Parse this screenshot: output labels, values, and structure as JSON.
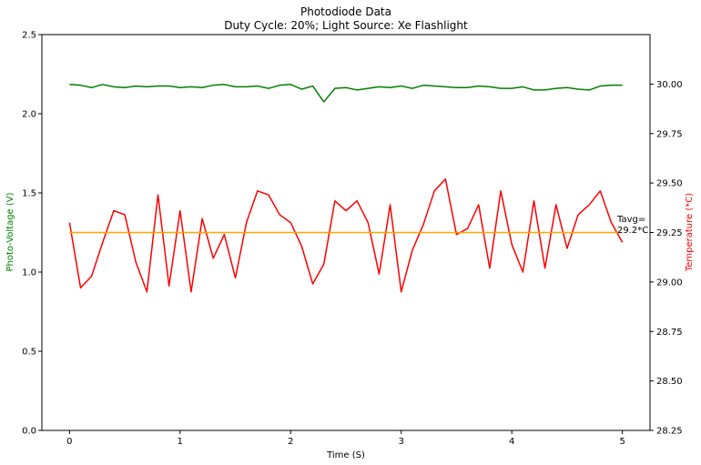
{
  "chart_data": {
    "type": "line",
    "title": "Photodiode Data",
    "subtitle": "Duty Cycle: 20%; Light Source: Xe Flashlight",
    "xlabel": "Time (S)",
    "ylabel_left": "Photo-Voltage (V)",
    "ylabel_right": "Temperature (*C)",
    "xlim": [
      -0.25,
      5.25
    ],
    "ylim_left": [
      0.0,
      2.5
    ],
    "ylim_right": [
      28.25,
      30.25
    ],
    "xticks": [
      0,
      1,
      2,
      3,
      4,
      5
    ],
    "yticks_left": [
      0.0,
      0.5,
      1.0,
      1.5,
      2.0,
      2.5
    ],
    "yticks_right": [
      28.25,
      28.5,
      28.75,
      29.0,
      29.25,
      29.5,
      29.75,
      30.0
    ],
    "grid": false,
    "x": [
      0.0,
      0.1,
      0.2,
      0.3,
      0.4,
      0.5,
      0.6,
      0.7,
      0.8,
      0.9,
      1.0,
      1.1,
      1.2,
      1.3,
      1.4,
      1.5,
      1.6,
      1.7,
      1.8,
      1.9,
      2.0,
      2.1,
      2.2,
      2.3,
      2.4,
      2.5,
      2.6,
      2.7,
      2.8,
      2.9,
      3.0,
      3.1,
      3.2,
      3.3,
      3.4,
      3.5,
      3.6,
      3.7,
      3.8,
      3.9,
      4.0,
      4.1,
      4.2,
      4.3,
      4.4,
      4.5,
      4.6,
      4.7,
      4.8,
      4.9,
      5.0
    ],
    "series": [
      {
        "name": "Photo-Voltage",
        "axis": "left",
        "color": "#008000",
        "values": [
          2.185,
          2.18,
          2.165,
          2.185,
          2.17,
          2.165,
          2.175,
          2.17,
          2.175,
          2.175,
          2.165,
          2.17,
          2.165,
          2.18,
          2.185,
          2.17,
          2.17,
          2.175,
          2.16,
          2.18,
          2.185,
          2.155,
          2.175,
          2.075,
          2.16,
          2.165,
          2.15,
          2.16,
          2.17,
          2.165,
          2.175,
          2.16,
          2.18,
          2.175,
          2.17,
          2.165,
          2.165,
          2.175,
          2.17,
          2.16,
          2.16,
          2.17,
          2.15,
          2.15,
          2.16,
          2.165,
          2.155,
          2.15,
          2.175,
          2.18,
          2.18
        ]
      },
      {
        "name": "Temperature",
        "axis": "right",
        "color": "#ff0000",
        "values": [
          29.3,
          28.97,
          29.03,
          29.2,
          29.36,
          29.34,
          29.1,
          28.95,
          29.44,
          28.98,
          29.36,
          28.95,
          29.32,
          29.12,
          29.24,
          29.02,
          29.3,
          29.46,
          29.44,
          29.34,
          29.3,
          29.18,
          28.99,
          29.09,
          29.41,
          29.36,
          29.41,
          29.3,
          29.04,
          29.39,
          28.95,
          29.16,
          29.29,
          29.46,
          29.52,
          29.24,
          29.27,
          29.39,
          29.07,
          29.46,
          29.19,
          29.05,
          29.41,
          29.07,
          29.39,
          29.17,
          29.34,
          29.39,
          29.46,
          29.3,
          29.2
        ]
      },
      {
        "name": "Tavg",
        "axis": "right",
        "color": "#ffa500",
        "x_range": [
          0.0,
          5.0
        ],
        "value": 29.25
      }
    ],
    "annotations": [
      {
        "text_line1": "Tavg=",
        "text_line2": "29.2*C"
      }
    ]
  }
}
